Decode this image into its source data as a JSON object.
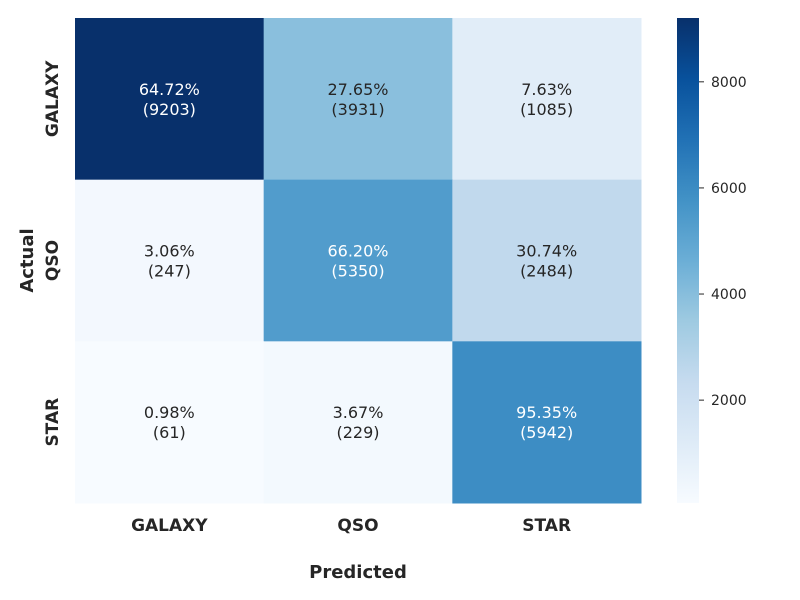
{
  "chart_data": {
    "type": "heatmap",
    "xlabel": "Predicted",
    "ylabel": "Actual",
    "x_categories": [
      "GALAXY",
      "QSO",
      "STAR"
    ],
    "y_categories": [
      "GALAXY",
      "QSO",
      "STAR"
    ],
    "counts": [
      [
        9203,
        3931,
        1085
      ],
      [
        247,
        5350,
        2484
      ],
      [
        61,
        229,
        5942
      ]
    ],
    "percents": [
      [
        "64.72%",
        "27.65%",
        "7.63%"
      ],
      [
        "3.06%",
        "66.20%",
        "30.74%"
      ],
      [
        "0.98%",
        "3.67%",
        "95.35%"
      ]
    ],
    "colorbar": {
      "colormap": "Blues",
      "min": 61,
      "max": 9203,
      "ticks": [
        2000,
        4000,
        6000,
        8000
      ]
    }
  }
}
